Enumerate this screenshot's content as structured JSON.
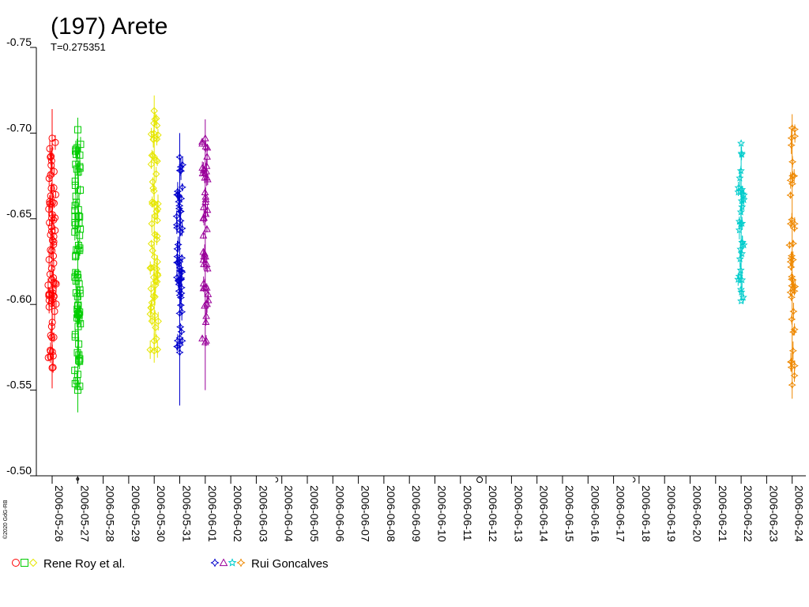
{
  "chart_data": {
    "type": "scatter",
    "title": "(197) Arete",
    "subtitle": "T=0.275351",
    "credit": "©2020 GdG-RB",
    "y_inverted": true,
    "ylim": [
      -0.75,
      -0.5
    ],
    "y_ticks": [
      "-0.75",
      "-0.70",
      "-0.65",
      "-0.60",
      "-0.55",
      "-0.50"
    ],
    "x_start": "2006-05-26",
    "x_ticks": [
      "2006-05-26",
      "2006-05-27",
      "2006-05-28",
      "2006-05-29",
      "2006-05-30",
      "2006-05-31",
      "2006-06-01",
      "2006-06-02",
      "2006-06-03",
      "2006-06-04",
      "2006-06-05",
      "2006-06-06",
      "2006-06-07",
      "2006-06-08",
      "2006-06-09",
      "2006-06-10",
      "2006-06-11",
      "2006-06-12",
      "2006-06-13",
      "2006-06-14",
      "2006-06-15",
      "2006-06-16",
      "2006-06-17",
      "2006-06-18",
      "2006-06-19",
      "2006-06-20",
      "2006-06-21",
      "2006-06-22",
      "2006-06-23",
      "2006-06-24"
    ],
    "legend": [
      {
        "label": "Rene Roy et al.",
        "markers": [
          "circle",
          "square",
          "diamond"
        ],
        "colors": [
          "#ff0000",
          "#00cc00",
          "#e6e600"
        ]
      },
      {
        "label": "Rui Goncalves",
        "markers": [
          "star4",
          "triangle",
          "star5",
          "star4"
        ],
        "colors": [
          "#0000cc",
          "#990099",
          "#00cccc",
          "#ee8800"
        ]
      }
    ],
    "series": [
      {
        "date": "2006-05-26",
        "marker": "circle",
        "color": "#ff0000",
        "center": 0.0,
        "spread": 0.04,
        "y_min": -0.697,
        "y_max": -0.563,
        "err_top": -0.714,
        "err_bottom": -0.551,
        "count": 70
      },
      {
        "date": "2006-05-27",
        "marker": "square",
        "color": "#00cc00",
        "center": 0.005,
        "spread": 0.03,
        "y_min": -0.702,
        "y_max": -0.55,
        "err_top": -0.709,
        "err_bottom": -0.537,
        "count": 70
      },
      {
        "date": "2006-05-30",
        "marker": "diamond",
        "color": "#e6e600",
        "center": 0.0,
        "spread": 0.04,
        "y_min": -0.713,
        "y_max": -0.573,
        "err_top": -0.722,
        "err_bottom": -0.566,
        "count": 60
      },
      {
        "date": "2006-05-31",
        "marker": "star4",
        "color": "#0000cc",
        "center": 0.0,
        "spread": 0.03,
        "y_min": -0.686,
        "y_max": -0.572,
        "err_top": -0.7,
        "err_bottom": -0.541,
        "count": 55
      },
      {
        "date": "2006-06-01",
        "marker": "triangle",
        "color": "#990099",
        "center": 0.0,
        "spread": 0.03,
        "y_min": -0.697,
        "y_max": -0.578,
        "err_top": -0.708,
        "err_bottom": -0.55,
        "count": 45
      },
      {
        "date": "2006-06-22",
        "marker": "star5",
        "color": "#00cccc",
        "center": 0.0,
        "spread": 0.03,
        "y_min": -0.694,
        "y_max": -0.602,
        "err_top": -0.694,
        "err_bottom": -0.602,
        "count": 30
      },
      {
        "date": "2006-06-24",
        "marker": "star4",
        "color": "#ee8800",
        "center": 0.0,
        "spread": 0.03,
        "y_min": -0.703,
        "y_max": -0.553,
        "err_top": -0.711,
        "err_bottom": -0.545,
        "count": 40
      }
    ],
    "axis_markers": [
      {
        "date": "2006-05-27",
        "marker": "dot"
      },
      {
        "date": "2006-06-04",
        "marker": "half-circle"
      },
      {
        "date": "2006-06-12",
        "marker": "circle"
      },
      {
        "date": "2006-06-18",
        "marker": "half-circle"
      }
    ]
  }
}
